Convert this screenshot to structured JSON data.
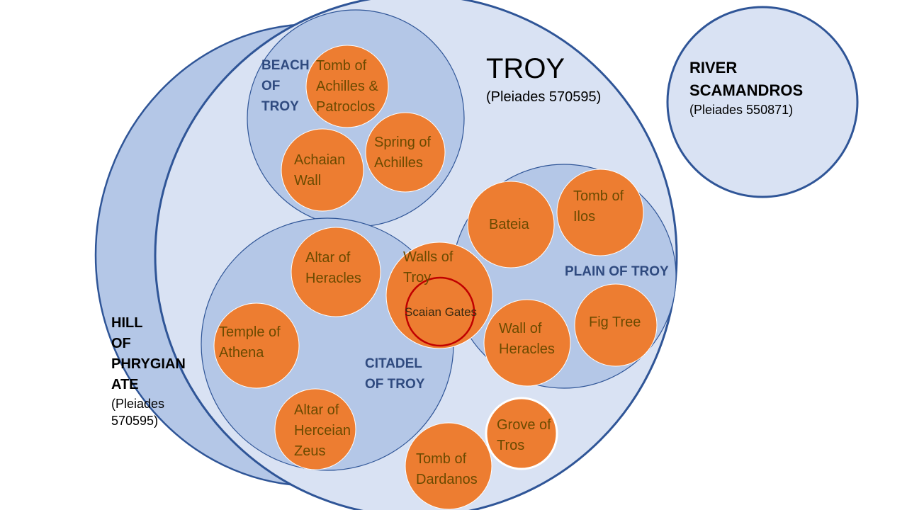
{
  "colors": {
    "outer_fill": "#d9e2f3",
    "outer_stroke": "#2f5597",
    "region_fill": "#b4c7e7",
    "region_stroke": "#2f5597",
    "hill_fill": "#b4c7e7",
    "node_fill": "#ed7d31",
    "node_stroke": "#ffffff",
    "gate_ring": "#c00000",
    "node_text": "#6b4a00",
    "region_text": "#2f4a7f"
  },
  "troy": {
    "title": "TROY",
    "pleiades": "(Pleiades 570595)"
  },
  "river": {
    "title": "RIVER\nSCAMANDROS",
    "pleiades": "(Pleiades  550871)"
  },
  "hill": {
    "title": "HILL\nOF\nPHRYGIAN\nATE",
    "pleiades": "(Pleiades\n570595)"
  },
  "regions": {
    "beach": "BEACH\nOF\nTROY",
    "citadel": "CITADEL\nOF TROY",
    "plain": "PLAIN OF TROY"
  },
  "nodes": {
    "tomb_achilles": "Tomb of\nAchilles &\nPatroclos",
    "achaian_wall": "Achaian\nWall",
    "spring_achilles": "Spring of\nAchilles",
    "bateia": "Bateia",
    "tomb_ilos": "Tomb of\nIlos",
    "wall_heracles": "Wall of\nHeracles",
    "fig_tree": "Fig Tree",
    "altar_heracles": "Altar of\nHeracles",
    "temple_athena": "Temple of\nAthena",
    "altar_zeus": "Altar of\nHerceian\nZeus",
    "walls_troy": "Walls of\nTroy",
    "scaian_gates": "Scaian Gates",
    "grove_tros": "Grove of\nTros",
    "tomb_dardanos": "Tomb of\nDardanos"
  }
}
